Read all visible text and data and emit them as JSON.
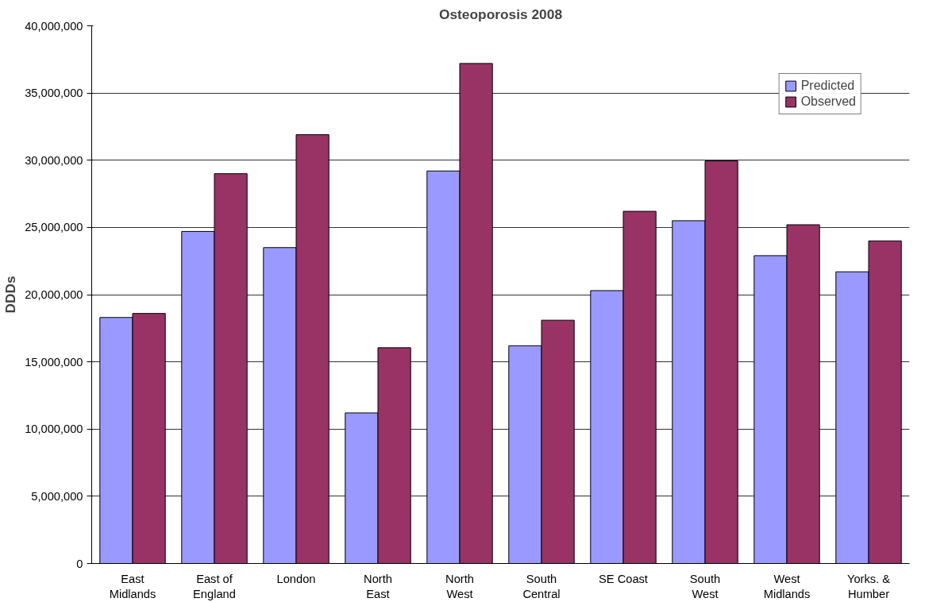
{
  "chart_data": {
    "type": "bar",
    "title": "Osteoporosis 2008",
    "ylabel": "DDDs",
    "categories": [
      "East\nMidlands",
      "East of\nEngland",
      "London",
      "North\nEast",
      "North\nWest",
      "South\nCentral",
      "SE Coast",
      "South\nWest",
      "West\nMidlands",
      "Yorks. &\nHumber"
    ],
    "series": [
      {
        "name": "Predicted",
        "color": "#9999ff",
        "values": [
          18300000,
          24700000,
          23500000,
          11200000,
          29200000,
          16200000,
          20300000,
          25500000,
          22900000,
          21700000
        ]
      },
      {
        "name": "Observed",
        "color": "#993366",
        "values": [
          18600000,
          29000000,
          31900000,
          16050000,
          37200000,
          18100000,
          26200000,
          29950000,
          25200000,
          24000000
        ]
      }
    ],
    "ylim": [
      0,
      40000000
    ],
    "yticks": [
      {
        "value": 0,
        "label": "0"
      },
      {
        "value": 5000000,
        "label": "5,000,000"
      },
      {
        "value": 10000000,
        "label": "10,000,000"
      },
      {
        "value": 15000000,
        "label": "15,000,000"
      },
      {
        "value": 20000000,
        "label": "20,000,000"
      },
      {
        "value": 25000000,
        "label": "25,000,000"
      },
      {
        "value": 30000000,
        "label": "30,000,000"
      },
      {
        "value": 35000000,
        "label": "35,000,000"
      },
      {
        "value": 40000000,
        "label": "40,000,000"
      }
    ],
    "grid": "y",
    "legend": "top right"
  }
}
